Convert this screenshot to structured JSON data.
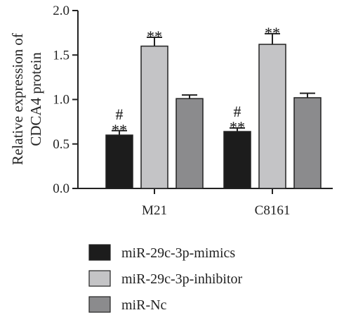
{
  "chart_data": {
    "type": "bar",
    "categories": [
      "M21",
      "C8161"
    ],
    "ylabel_lines": [
      "Relative expression of",
      "CDCA4 protein"
    ],
    "ylim": [
      0,
      2.0
    ],
    "yticks": [
      "0.0",
      "0.5",
      "1.0",
      "1.5",
      "2.0"
    ],
    "series": [
      {
        "name": "miR-29c-3p-mimics",
        "color": "#1c1c1c",
        "values": [
          0.6,
          0.64
        ],
        "errors": [
          0.05,
          0.04
        ],
        "annotations": [
          [
            "#",
            "**"
          ],
          [
            "#",
            "**"
          ]
        ]
      },
      {
        "name": "miR-29c-3p-inhibitor",
        "color": "#c4c4c6",
        "values": [
          1.6,
          1.62
        ],
        "errors": [
          0.1,
          0.12
        ],
        "annotations": [
          [
            "**"
          ],
          [
            "**"
          ]
        ]
      },
      {
        "name": "miR-Nc",
        "color": "#8b8b8d",
        "values": [
          1.01,
          1.02
        ],
        "errors": [
          0.04,
          0.05
        ],
        "annotations": [
          [],
          []
        ]
      }
    ],
    "legend": "bottom"
  }
}
